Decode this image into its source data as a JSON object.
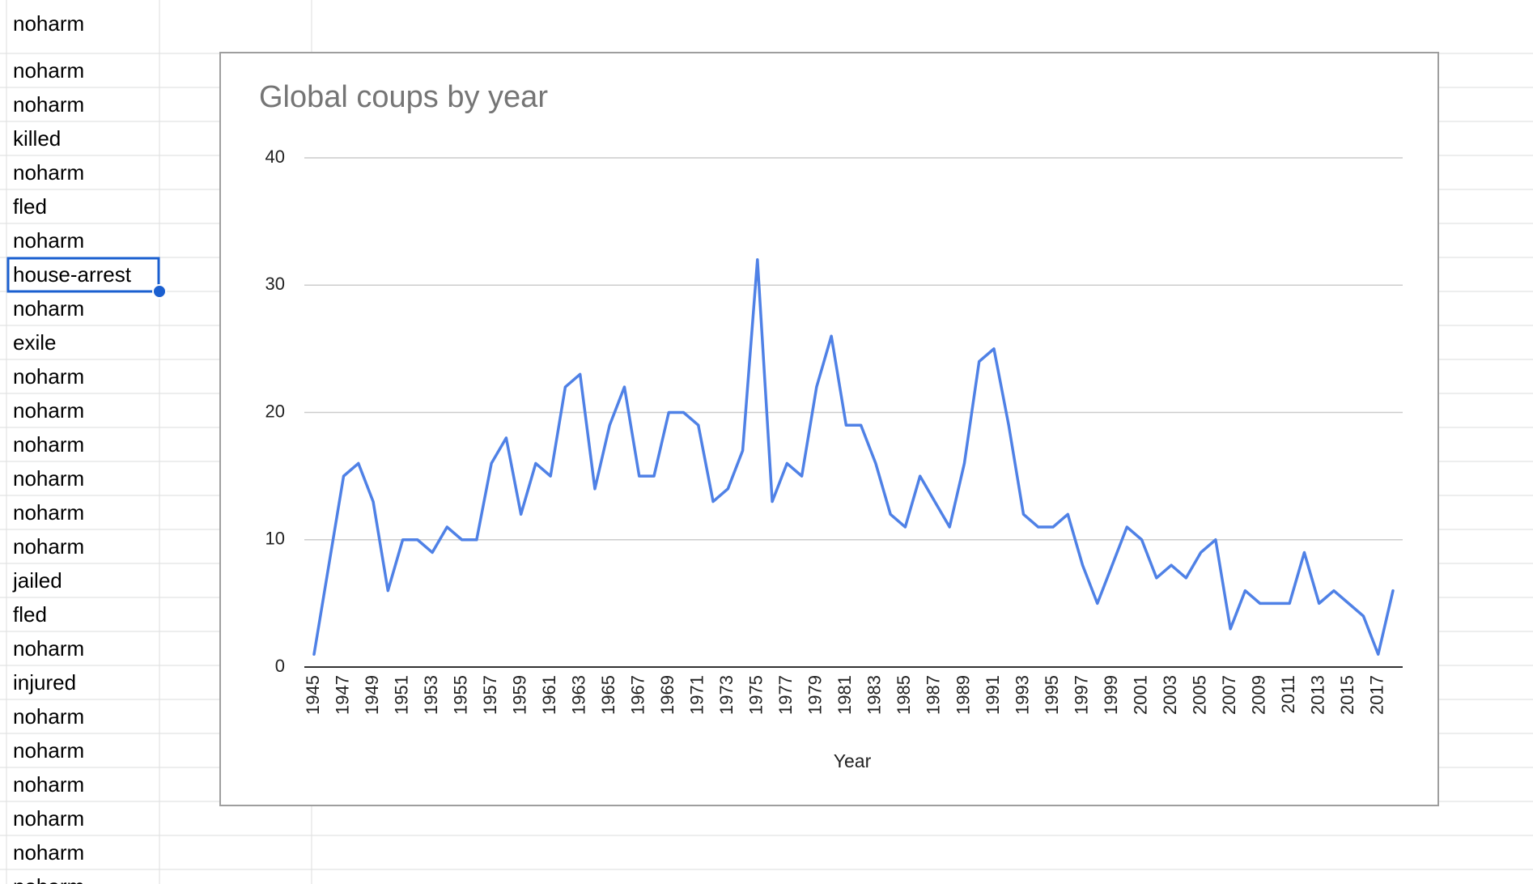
{
  "spreadsheet": {
    "column_a_cells": [
      "noharm",
      "noharm",
      "noharm",
      "killed",
      "noharm",
      "fled",
      "noharm",
      "house-arrest",
      "noharm",
      "exile",
      "noharm",
      "noharm",
      "noharm",
      "noharm",
      "noharm",
      "noharm",
      "jailed",
      "fled",
      "noharm",
      "injured",
      "noharm",
      "noharm",
      "noharm",
      "noharm",
      "noharm",
      "noharm"
    ],
    "selected_cell_value": "house-arrest",
    "selection_color": "#1a5fd0"
  },
  "chart_data": {
    "type": "line",
    "title": "Global coups by year",
    "xlabel": "Year",
    "ylabel": "",
    "ylim": [
      0,
      40
    ],
    "yticks": [
      0,
      10,
      20,
      30,
      40
    ],
    "xticks": [
      1945,
      1947,
      1949,
      1951,
      1953,
      1955,
      1957,
      1959,
      1961,
      1963,
      1965,
      1967,
      1969,
      1971,
      1973,
      1975,
      1977,
      1979,
      1981,
      1983,
      1985,
      1987,
      1989,
      1991,
      1993,
      1995,
      1997,
      1999,
      2001,
      2003,
      2005,
      2007,
      2009,
      2011,
      2013,
      2015,
      2017
    ],
    "grid": true,
    "legend": "none",
    "line_color": "#4f81e6",
    "x": [
      1945,
      1946,
      1947,
      1948,
      1949,
      1950,
      1951,
      1952,
      1953,
      1954,
      1955,
      1956,
      1957,
      1958,
      1959,
      1960,
      1961,
      1962,
      1963,
      1964,
      1965,
      1966,
      1967,
      1968,
      1969,
      1970,
      1971,
      1972,
      1973,
      1974,
      1975,
      1976,
      1977,
      1978,
      1979,
      1980,
      1981,
      1982,
      1983,
      1984,
      1985,
      1986,
      1987,
      1988,
      1989,
      1990,
      1991,
      1992,
      1993,
      1994,
      1995,
      1996,
      1997,
      1998,
      1999,
      2000,
      2001,
      2002,
      2003,
      2004,
      2005,
      2006,
      2007,
      2008,
      2009,
      2010,
      2011,
      2012,
      2013,
      2014,
      2015,
      2016,
      2017,
      2018
    ],
    "series": [
      {
        "values": [
          1,
          8,
          15,
          16,
          13,
          6,
          10,
          10,
          9,
          11,
          10,
          10,
          16,
          18,
          12,
          16,
          15,
          22,
          23,
          14,
          19,
          22,
          15,
          15,
          20,
          20,
          19,
          13,
          14,
          17,
          32,
          13,
          16,
          15,
          22,
          26,
          19,
          19,
          16,
          12,
          11,
          15,
          13,
          11,
          16,
          24,
          25,
          19,
          12,
          11,
          11,
          12,
          8,
          5,
          8,
          11,
          10,
          7,
          8,
          7,
          9,
          10,
          3,
          6,
          5,
          5,
          5,
          9,
          5,
          6,
          5,
          4,
          1,
          6
        ]
      }
    ]
  }
}
